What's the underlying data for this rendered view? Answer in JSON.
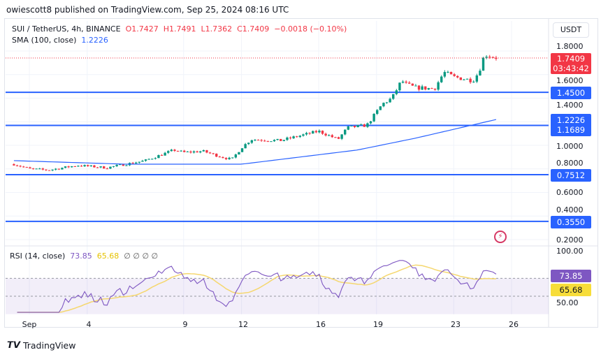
{
  "publisher_line": "owiescott8 published on TradingView.com, Sep 25, 2024 08:16 UTC",
  "legend": {
    "symbol": "SUI / TetherUS, 4h, BINANCE",
    "open": "O1.7427",
    "high": "H1.7491",
    "low": "L1.7362",
    "close": "C1.7409",
    "change": "−0.0018 (−0.10%)",
    "sma_label": "SMA (100, close)",
    "sma_value": "1.2226"
  },
  "currency_button": "USDT",
  "price_axis": [
    "1.8000",
    "1.6000",
    "1.4000",
    "1.0000",
    "0.8000",
    "0.6000",
    "0.4000",
    "0.2000"
  ],
  "last_price": {
    "value": "1.7409",
    "countdown": "03:43:42"
  },
  "levels": [
    {
      "label": "1.4500",
      "value": 1.45
    },
    {
      "label": "1.1689",
      "value": 1.1689
    },
    {
      "label": "0.7512",
      "value": 0.7512
    },
    {
      "label": "0.3550",
      "value": 0.355
    }
  ],
  "sma_tag": "1.2226",
  "rsi": {
    "label": "RSI (14, close)",
    "value": "73.85",
    "ma": "65.68",
    "extras": "∅ ∅ ∅ ∅",
    "axis": [
      "100.00",
      "50.00"
    ]
  },
  "time_axis": [
    "Sep",
    "4",
    "9",
    "12",
    "16",
    "19",
    "23",
    "26"
  ],
  "brand": "TradingView",
  "colors": {
    "up": "#089981",
    "down": "#f23645",
    "level": "#2962ff",
    "sma": "#2962ff",
    "rsi": "#7e57c2",
    "rsi_ma": "#f5d76e"
  },
  "chart_data": {
    "type": "candlestick",
    "symbol": "SUI/USDT",
    "interval": "4h",
    "price_path": [
      [
        -0.8,
        0.84
      ],
      [
        0,
        0.8
      ],
      [
        1,
        0.79
      ],
      [
        2.5,
        0.83
      ],
      [
        4,
        0.81
      ],
      [
        5,
        0.84
      ],
      [
        6,
        0.87
      ],
      [
        7.5,
        0.96
      ],
      [
        8,
        0.94
      ],
      [
        9,
        0.95
      ],
      [
        10,
        0.9
      ],
      [
        10.5,
        0.88
      ],
      [
        11,
        0.98
      ],
      [
        11.5,
        1.05
      ],
      [
        13,
        1.04
      ],
      [
        14,
        1.08
      ],
      [
        15,
        1.12
      ],
      [
        16,
        1.05
      ],
      [
        16.5,
        1.15
      ],
      [
        17.5,
        1.17
      ],
      [
        18.3,
        1.35
      ],
      [
        18.8,
        1.4
      ],
      [
        19.3,
        1.55
      ],
      [
        19.5,
        1.52
      ],
      [
        20,
        1.49
      ],
      [
        21,
        1.48
      ],
      [
        21.5,
        1.62
      ],
      [
        22,
        1.58
      ],
      [
        23,
        1.55
      ],
      [
        23.3,
        1.62
      ],
      [
        23.6,
        1.77
      ],
      [
        24.3,
        1.74
      ]
    ],
    "sma_path": [
      [
        -0.8,
        0.87
      ],
      [
        5,
        0.84
      ],
      [
        11,
        0.84
      ],
      [
        17,
        0.96
      ],
      [
        20,
        1.06
      ],
      [
        24.3,
        1.2226
      ]
    ],
    "ylim": [
      0.2,
      1.8
    ],
    "rsi_ylim": [
      30,
      100
    ]
  }
}
